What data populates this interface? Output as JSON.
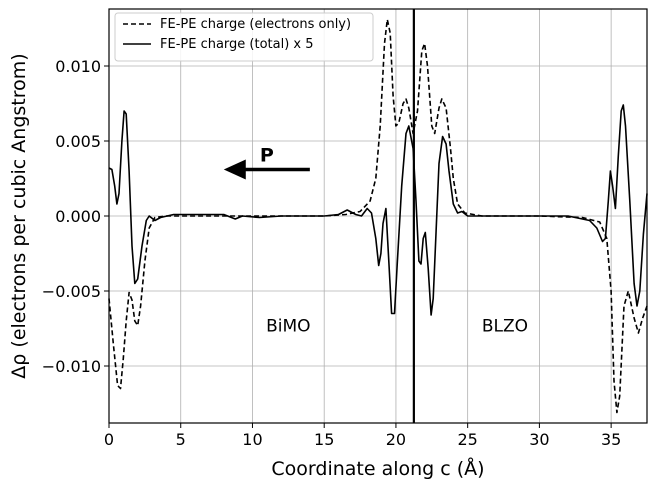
{
  "chart_data": {
    "type": "line",
    "xlabel": "Coordinate along c (Å)",
    "ylabel": "Δρ (electrons per cubic Angstrom)",
    "xlim": [
      0,
      37.5
    ],
    "ylim": [
      -0.0138,
      0.0138
    ],
    "xticks": [
      0,
      5,
      10,
      15,
      20,
      25,
      30,
      35
    ],
    "xtick_labels": [
      "0",
      "5",
      "10",
      "15",
      "20",
      "25",
      "30",
      "35"
    ],
    "yticks": [
      -0.01,
      -0.005,
      0.0,
      0.005,
      0.01
    ],
    "ytick_labels": [
      "−0.010",
      "−0.005",
      "0.000",
      "0.005",
      "0.010"
    ],
    "grid": true,
    "legend_position": "top-left",
    "series": [
      {
        "name": "FE-PE charge (electrons only)",
        "style": "dashed",
        "color": "#000000",
        "points": [
          [
            0,
            -0.0055
          ],
          [
            0.3,
            -0.0085
          ],
          [
            0.6,
            -0.0113
          ],
          [
            0.8,
            -0.0115
          ],
          [
            1.0,
            -0.0095
          ],
          [
            1.2,
            -0.007
          ],
          [
            1.4,
            -0.0051
          ],
          [
            1.6,
            -0.0056
          ],
          [
            1.8,
            -0.007
          ],
          [
            2.0,
            -0.0073
          ],
          [
            2.2,
            -0.006
          ],
          [
            2.5,
            -0.003
          ],
          [
            2.8,
            -0.0008
          ],
          [
            3.2,
            -0.0001
          ],
          [
            4,
            0.0
          ],
          [
            10,
            0.0
          ],
          [
            15,
            0.0
          ],
          [
            16.5,
            0.0001
          ],
          [
            17.5,
            0.0003
          ],
          [
            18.2,
            0.001
          ],
          [
            18.6,
            0.0025
          ],
          [
            18.9,
            0.006
          ],
          [
            19.2,
            0.0115
          ],
          [
            19.4,
            0.0131
          ],
          [
            19.6,
            0.0122
          ],
          [
            19.8,
            0.008
          ],
          [
            20.0,
            0.006
          ],
          [
            20.2,
            0.0062
          ],
          [
            20.5,
            0.0075
          ],
          [
            20.7,
            0.0078
          ],
          [
            20.9,
            0.0072
          ],
          [
            21.2,
            0.0055
          ],
          [
            21.5,
            0.007
          ],
          [
            21.8,
            0.011
          ],
          [
            22.0,
            0.0115
          ],
          [
            22.2,
            0.01
          ],
          [
            22.5,
            0.006
          ],
          [
            22.7,
            0.0055
          ],
          [
            23.0,
            0.0072
          ],
          [
            23.2,
            0.0078
          ],
          [
            23.5,
            0.0072
          ],
          [
            23.8,
            0.0045
          ],
          [
            24.0,
            0.0025
          ],
          [
            24.3,
            0.0008
          ],
          [
            24.8,
            0.0002
          ],
          [
            26,
            0.0
          ],
          [
            30,
            0.0
          ],
          [
            33,
            -0.0001
          ],
          [
            34.2,
            -0.0004
          ],
          [
            34.7,
            -0.0015
          ],
          [
            35.0,
            -0.005
          ],
          [
            35.2,
            -0.011
          ],
          [
            35.4,
            -0.0131
          ],
          [
            35.6,
            -0.012
          ],
          [
            35.9,
            -0.006
          ],
          [
            36.2,
            -0.005
          ],
          [
            36.6,
            -0.0068
          ],
          [
            36.9,
            -0.0078
          ],
          [
            37.2,
            -0.0068
          ],
          [
            37.5,
            -0.006
          ]
        ]
      },
      {
        "name": "FE-PE charge (total) x 5",
        "style": "solid",
        "color": "#000000",
        "points": [
          [
            0,
            0.0032
          ],
          [
            0.2,
            0.0031
          ],
          [
            0.4,
            0.002
          ],
          [
            0.55,
            0.0008
          ],
          [
            0.7,
            0.0015
          ],
          [
            0.9,
            0.005
          ],
          [
            1.05,
            0.007
          ],
          [
            1.2,
            0.0068
          ],
          [
            1.4,
            0.003
          ],
          [
            1.6,
            -0.002
          ],
          [
            1.8,
            -0.0045
          ],
          [
            2.0,
            -0.0042
          ],
          [
            2.3,
            -0.002
          ],
          [
            2.6,
            -0.0003
          ],
          [
            2.8,
            0.0
          ],
          [
            3.2,
            -0.0003
          ],
          [
            3.6,
            -0.0001
          ],
          [
            4.5,
            0.0001
          ],
          [
            6,
            0.0001
          ],
          [
            8,
            0.0001
          ],
          [
            8.8,
            -0.0002
          ],
          [
            9.3,
            0.0
          ],
          [
            10.5,
            -0.0001
          ],
          [
            12,
            0.0
          ],
          [
            15,
            0.0
          ],
          [
            16,
            0.0001
          ],
          [
            16.6,
            0.0004
          ],
          [
            17.2,
            0.0001
          ],
          [
            17.6,
            0.0
          ],
          [
            18.0,
            0.0005
          ],
          [
            18.3,
            0.0002
          ],
          [
            18.6,
            -0.0015
          ],
          [
            18.8,
            -0.0033
          ],
          [
            18.95,
            -0.0025
          ],
          [
            19.1,
            -0.0005
          ],
          [
            19.3,
            0.0005
          ],
          [
            19.5,
            -0.003
          ],
          [
            19.7,
            -0.0065
          ],
          [
            19.9,
            -0.0065
          ],
          [
            20.1,
            -0.003
          ],
          [
            20.4,
            0.002
          ],
          [
            20.7,
            0.0055
          ],
          [
            20.9,
            0.006
          ],
          [
            21.2,
            0.0045
          ],
          [
            21.4,
            0.001
          ],
          [
            21.6,
            -0.003
          ],
          [
            21.75,
            -0.0032
          ],
          [
            21.9,
            -0.0015
          ],
          [
            22.05,
            -0.0011
          ],
          [
            22.25,
            -0.0035
          ],
          [
            22.45,
            -0.0066
          ],
          [
            22.6,
            -0.0055
          ],
          [
            22.8,
            -0.001
          ],
          [
            23.0,
            0.0035
          ],
          [
            23.25,
            0.0053
          ],
          [
            23.5,
            0.0048
          ],
          [
            23.7,
            0.003
          ],
          [
            24.0,
            0.0008
          ],
          [
            24.3,
            0.0002
          ],
          [
            24.6,
            0.0003
          ],
          [
            25.0,
            0.0
          ],
          [
            28,
            0.0
          ],
          [
            32,
            0.0
          ],
          [
            33.5,
            -0.0003
          ],
          [
            34.0,
            -0.0008
          ],
          [
            34.4,
            -0.0017
          ],
          [
            34.6,
            -0.0015
          ],
          [
            34.8,
            0.001
          ],
          [
            34.95,
            0.003
          ],
          [
            35.1,
            0.002
          ],
          [
            35.3,
            0.0005
          ],
          [
            35.5,
            0.004
          ],
          [
            35.7,
            0.007
          ],
          [
            35.85,
            0.0074
          ],
          [
            36.0,
            0.006
          ],
          [
            36.3,
            0.001
          ],
          [
            36.6,
            -0.0045
          ],
          [
            36.8,
            -0.006
          ],
          [
            37.0,
            -0.005
          ],
          [
            37.25,
            -0.0012
          ],
          [
            37.5,
            0.0015
          ]
        ]
      }
    ],
    "vertical_line_x": 21.25,
    "annotations": [
      {
        "text": "BiMO",
        "x": 12.5,
        "y": -0.0077
      },
      {
        "text": "BLZO",
        "x": 27.6,
        "y": -0.0077
      }
    ],
    "arrow": {
      "label": "P",
      "from": [
        14.0,
        0.0031
      ],
      "to": [
        8.0,
        0.0031
      ]
    }
  }
}
